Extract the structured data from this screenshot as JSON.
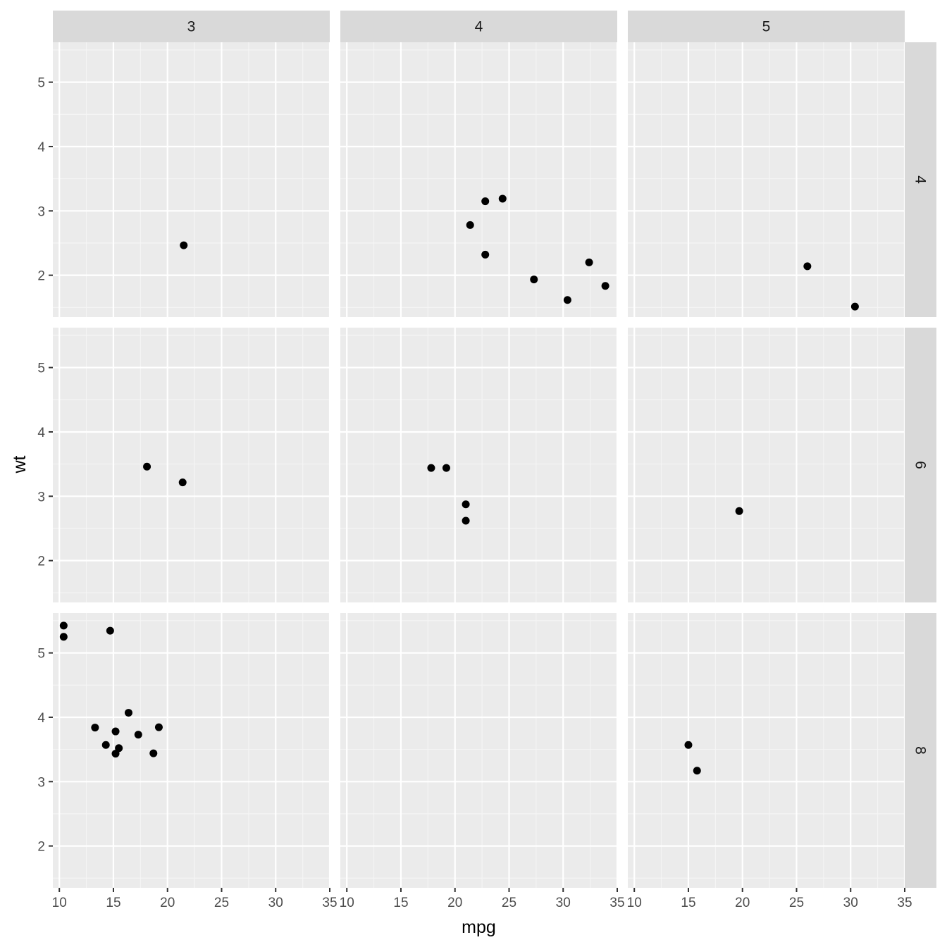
{
  "chart_data": {
    "type": "scatter",
    "xlabel": "mpg",
    "ylabel": "wt",
    "xlim": [
      9.4,
      35.0
    ],
    "ylim": [
      1.35,
      5.62
    ],
    "x_ticks": [
      10,
      15,
      20,
      25,
      30,
      35
    ],
    "y_ticks": [
      2,
      3,
      4,
      5
    ],
    "grid": true,
    "facet_cols": [
      "3",
      "4",
      "5"
    ],
    "facet_rows": [
      "4",
      "6",
      "8"
    ],
    "panels": [
      {
        "col": "3",
        "row": "4",
        "points": [
          {
            "x": 21.5,
            "y": 2.465
          }
        ]
      },
      {
        "col": "4",
        "row": "4",
        "points": [
          {
            "x": 22.8,
            "y": 3.15
          },
          {
            "x": 24.4,
            "y": 3.19
          },
          {
            "x": 21.4,
            "y": 2.78
          },
          {
            "x": 22.8,
            "y": 2.32
          },
          {
            "x": 27.3,
            "y": 1.935
          },
          {
            "x": 32.4,
            "y": 2.2
          },
          {
            "x": 30.4,
            "y": 1.615
          },
          {
            "x": 33.9,
            "y": 1.835
          }
        ]
      },
      {
        "col": "5",
        "row": "4",
        "points": [
          {
            "x": 26.0,
            "y": 2.14
          },
          {
            "x": 30.4,
            "y": 1.513
          }
        ]
      },
      {
        "col": "3",
        "row": "6",
        "points": [
          {
            "x": 18.1,
            "y": 3.46
          },
          {
            "x": 21.4,
            "y": 3.215
          }
        ]
      },
      {
        "col": "4",
        "row": "6",
        "points": [
          {
            "x": 17.8,
            "y": 3.44
          },
          {
            "x": 19.2,
            "y": 3.44
          },
          {
            "x": 21.0,
            "y": 2.875
          },
          {
            "x": 21.0,
            "y": 2.62
          }
        ]
      },
      {
        "col": "5",
        "row": "6",
        "points": [
          {
            "x": 19.7,
            "y": 2.77
          }
        ]
      },
      {
        "col": "3",
        "row": "8",
        "points": [
          {
            "x": 10.4,
            "y": 5.424
          },
          {
            "x": 10.4,
            "y": 5.25
          },
          {
            "x": 14.7,
            "y": 5.345
          },
          {
            "x": 13.3,
            "y": 3.84
          },
          {
            "x": 15.2,
            "y": 3.78
          },
          {
            "x": 16.4,
            "y": 4.07
          },
          {
            "x": 19.2,
            "y": 3.845
          },
          {
            "x": 14.3,
            "y": 3.57
          },
          {
            "x": 15.5,
            "y": 3.52
          },
          {
            "x": 17.3,
            "y": 3.73
          },
          {
            "x": 15.2,
            "y": 3.435
          },
          {
            "x": 18.7,
            "y": 3.44
          }
        ]
      },
      {
        "col": "4",
        "row": "8",
        "points": []
      },
      {
        "col": "5",
        "row": "8",
        "points": [
          {
            "x": 15.0,
            "y": 3.57
          },
          {
            "x": 15.8,
            "y": 3.17
          }
        ]
      }
    ],
    "colors": {
      "panel_bg": "#ebebeb",
      "strip_bg": "#d9d9d9",
      "grid_major": "#ffffff",
      "grid_minor": "#f5f5f5",
      "point": "#000000",
      "tick": "#333333"
    }
  }
}
